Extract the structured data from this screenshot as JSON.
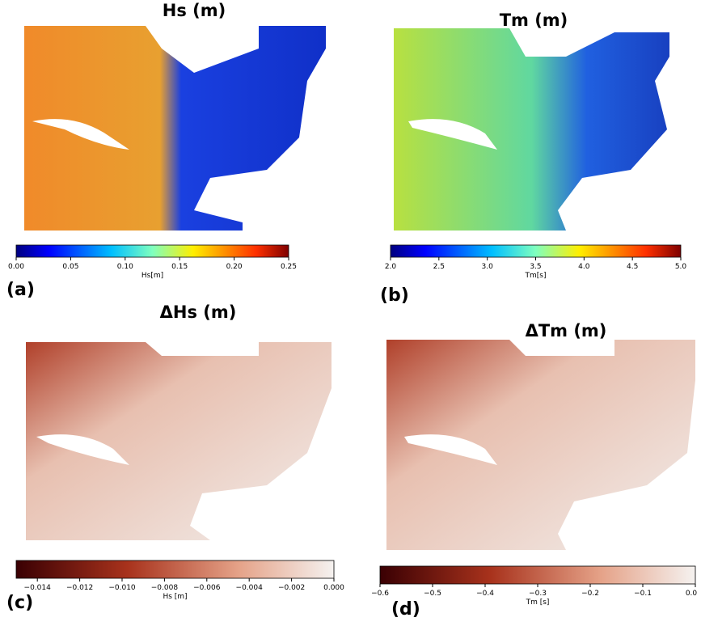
{
  "panels": [
    {
      "title": "Hs (m)",
      "letter": "(a)",
      "colorbar": {
        "label": "Hs[m]",
        "lim": [
          0,
          0.25
        ],
        "ticks": [
          {
            "value": 0,
            "label": "0.00"
          },
          {
            "value": 0.05,
            "label": "0.05"
          },
          {
            "value": 0.1,
            "label": "0.10"
          },
          {
            "value": 0.15,
            "label": "0.15"
          },
          {
            "value": 0.2,
            "label": "0.20"
          },
          {
            "value": 0.25,
            "label": "0.25"
          }
        ]
      }
    },
    {
      "title": "Tm (m)",
      "letter": "(b)",
      "colorbar": {
        "label": "Tm[s]",
        "lim": [
          2,
          5
        ],
        "ticks": [
          {
            "value": 2,
            "label": "2.0"
          },
          {
            "value": 2.5,
            "label": "2.5"
          },
          {
            "value": 3,
            "label": "3.0"
          },
          {
            "value": 3.5,
            "label": "3.5"
          },
          {
            "value": 4,
            "label": "4.0"
          },
          {
            "value": 4.5,
            "label": "4.5"
          },
          {
            "value": 5,
            "label": "5.0"
          }
        ]
      }
    },
    {
      "title": "ΔHs (m)",
      "letter": "(c)",
      "colorbar": {
        "label": "Hs [m]",
        "lim": [
          -0.015,
          0
        ],
        "ticks": [
          {
            "value": -0.014,
            "label": "−0.014"
          },
          {
            "value": -0.012,
            "label": "−0.012"
          },
          {
            "value": -0.01,
            "label": "−0.010"
          },
          {
            "value": -0.008,
            "label": "−0.008"
          },
          {
            "value": -0.006,
            "label": "−0.006"
          },
          {
            "value": -0.004,
            "label": "−0.004"
          },
          {
            "value": -0.002,
            "label": "−0.002"
          },
          {
            "value": 0,
            "label": "0.000"
          }
        ]
      }
    },
    {
      "title": "ΔTm (m)",
      "letter": "(d)",
      "colorbar": {
        "label": "Tm [s]",
        "lim": [
          -0.6,
          0
        ],
        "ticks": [
          {
            "value": -0.6,
            "label": "−0.6"
          },
          {
            "value": -0.5,
            "label": "−0.5"
          },
          {
            "value": -0.4,
            "label": "−0.4"
          },
          {
            "value": -0.3,
            "label": "−0.3"
          },
          {
            "value": -0.2,
            "label": "−0.2"
          },
          {
            "value": -0.1,
            "label": "−0.1"
          },
          {
            "value": 0,
            "label": "0.0"
          }
        ]
      }
    }
  ]
}
